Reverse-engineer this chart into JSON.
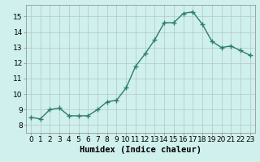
{
  "x": [
    0,
    1,
    2,
    3,
    4,
    5,
    6,
    7,
    8,
    9,
    10,
    11,
    12,
    13,
    14,
    15,
    16,
    17,
    18,
    19,
    20,
    21,
    22,
    23
  ],
  "y": [
    8.5,
    8.4,
    9.0,
    9.1,
    8.6,
    8.6,
    8.6,
    9.0,
    9.5,
    9.6,
    10.4,
    11.8,
    12.6,
    13.5,
    14.6,
    14.6,
    15.2,
    15.3,
    14.5,
    13.4,
    13.0,
    13.1,
    12.8,
    12.5
  ],
  "line_color": "#2e7d6e",
  "marker": "+",
  "marker_size": 4,
  "marker_linewidth": 1.0,
  "bg_color": "#cff0ec",
  "grid_color": "#b0c8c4",
  "xlabel": "Humidex (Indice chaleur)",
  "xlim": [
    -0.5,
    23.5
  ],
  "ylim": [
    7.5,
    15.75
  ],
  "yticks": [
    8,
    9,
    10,
    11,
    12,
    13,
    14,
    15
  ],
  "xticks": [
    0,
    1,
    2,
    3,
    4,
    5,
    6,
    7,
    8,
    9,
    10,
    11,
    12,
    13,
    14,
    15,
    16,
    17,
    18,
    19,
    20,
    21,
    22,
    23
  ],
  "linewidth": 1.0,
  "xlabel_fontsize": 7.5,
  "tick_fontsize": 6.5
}
